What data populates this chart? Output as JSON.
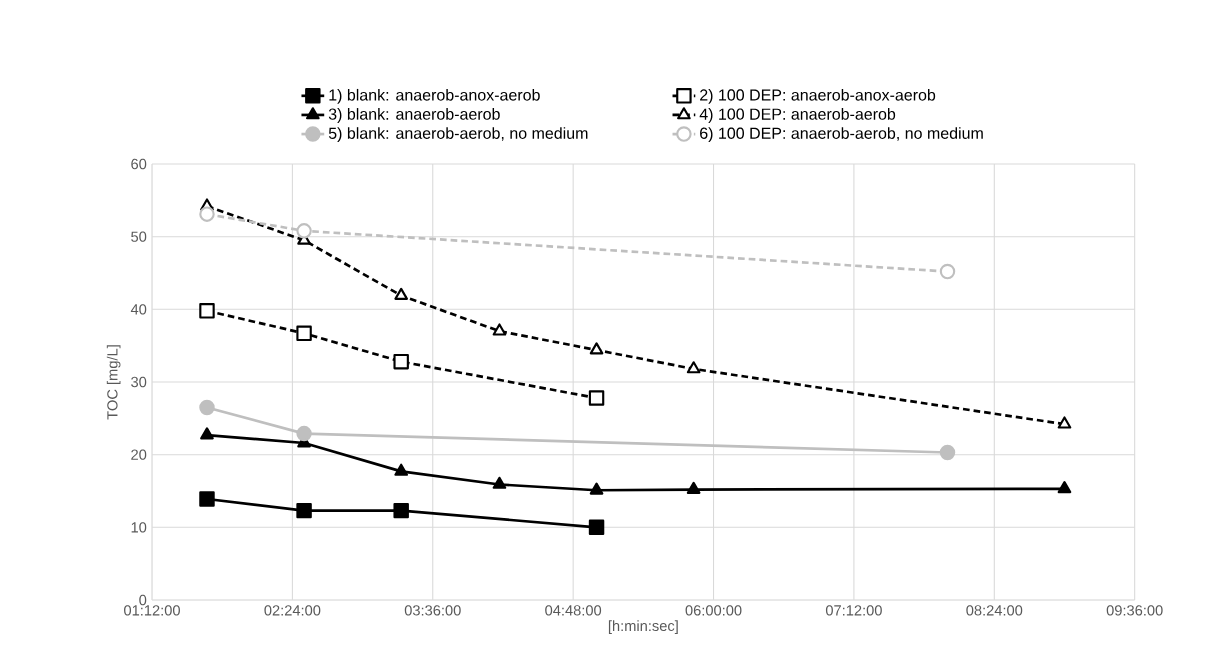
{
  "chart_data": {
    "type": "line",
    "xlabel": "[h:min:sec]",
    "ylabel": "TOC [mg/L]",
    "xlim": [
      1.2,
      9.6
    ],
    "ylim": [
      0,
      60
    ],
    "xticks": [
      {
        "value": 1.2,
        "label": "01:12:00"
      },
      {
        "value": 2.4,
        "label": "02:24:00"
      },
      {
        "value": 3.6,
        "label": "03:36:00"
      },
      {
        "value": 4.8,
        "label": "04:48:00"
      },
      {
        "value": 6.0,
        "label": "06:00:00"
      },
      {
        "value": 7.2,
        "label": "07:12:00"
      },
      {
        "value": 8.4,
        "label": "08:24:00"
      },
      {
        "value": 9.6,
        "label": "09:36:00"
      }
    ],
    "yticks": [
      0,
      10,
      20,
      30,
      40,
      50,
      60
    ],
    "grid": true,
    "legend": "top",
    "series": [
      {
        "name": "1) blank: anaerob-anox-aerob",
        "color": "#000000",
        "marker": "square",
        "line_style": "solid",
        "x": [
          1.67,
          2.5,
          3.33,
          5.0
        ],
        "values": [
          13.9,
          12.3,
          12.3,
          10.0
        ]
      },
      {
        "name": "2) 100 DEP: anaerob-anox-aerob",
        "color": "#000000",
        "marker": "square",
        "line_style": "dashed",
        "x": [
          1.67,
          2.5,
          3.33,
          5.0
        ],
        "values": [
          39.8,
          36.7,
          32.8,
          27.8
        ]
      },
      {
        "name": "3) blank: anaerob-aerob",
        "color": "#000000",
        "marker": "triangle",
        "line_style": "solid",
        "x": [
          1.67,
          2.5,
          3.33,
          4.17,
          5.0,
          5.83,
          9.0
        ],
        "values": [
          22.7,
          21.6,
          17.7,
          15.9,
          15.1,
          15.2,
          15.3
        ]
      },
      {
        "name": "4) 100 DEP: anaerob-aerob",
        "color": "#000000",
        "marker": "triangle",
        "line_style": "dashed",
        "x": [
          1.67,
          2.5,
          3.33,
          4.17,
          5.0,
          5.83,
          9.0
        ],
        "values": [
          54.2,
          49.5,
          41.9,
          37.0,
          34.4,
          31.8,
          24.2
        ]
      },
      {
        "name": "5) blank: anaerob-aerob, no medium",
        "color": "#bfbfbf",
        "marker": "circle",
        "line_style": "solid",
        "x": [
          1.67,
          2.5,
          8.0
        ],
        "values": [
          26.5,
          22.9,
          20.3
        ]
      },
      {
        "name": "6) 100 DEP: anaerob-aerob, no medium",
        "color": "#bfbfbf",
        "marker": "circle",
        "line_style": "dashed",
        "x": [
          1.67,
          2.5,
          8.0
        ],
        "values": [
          53.1,
          50.8,
          45.2
        ]
      }
    ]
  }
}
